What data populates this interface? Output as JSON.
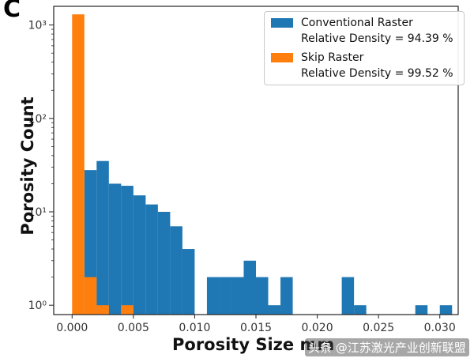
{
  "panel_label": "C",
  "watermark_text": "头条 @江苏激光产业创新联盟",
  "colors": {
    "conventional": "#1f77b4",
    "skip": "#ff7f0e",
    "axis": "#222222"
  },
  "chart_data": {
    "type": "bar",
    "title": "",
    "xlabel": "Porosity Size mm",
    "ylabel": "Porosity Count",
    "yscale": "log",
    "xlim": [
      -0.0015,
      0.0315
    ],
    "ylim_decades": [
      -0.1,
      3.2
    ],
    "xticks": [
      0.0,
      0.005,
      0.01,
      0.015,
      0.02,
      0.025,
      0.03
    ],
    "xtick_labels": [
      "0.000",
      "0.005",
      "0.010",
      "0.015",
      "0.020",
      "0.025",
      "0.030"
    ],
    "yticks": [
      1,
      10,
      100,
      1000
    ],
    "ytick_labels": [
      "10⁰",
      "10¹",
      "10²",
      "10³"
    ],
    "bin_width": 0.001,
    "legend_position": "top-right",
    "series": [
      {
        "name": "Conventional Raster",
        "density_label": "Relative Density = 94.39 %",
        "color": "#1f77b4",
        "bin_starts": [
          0.001,
          0.002,
          0.003,
          0.004,
          0.005,
          0.006,
          0.007,
          0.008,
          0.009,
          0.011,
          0.012,
          0.013,
          0.014,
          0.015,
          0.016,
          0.017,
          0.022,
          0.023,
          0.028,
          0.03
        ],
        "counts": [
          28,
          35,
          20,
          19,
          15,
          12,
          10,
          7,
          4,
          2,
          2,
          2,
          3,
          2,
          1,
          2,
          2,
          1,
          1,
          1
        ]
      },
      {
        "name": "Skip Raster",
        "density_label": "Relative Density = 99.52 %",
        "color": "#ff7f0e",
        "bin_starts": [
          0.0,
          0.001,
          0.002,
          0.004
        ],
        "counts": [
          1300,
          2,
          1,
          1
        ]
      }
    ]
  }
}
